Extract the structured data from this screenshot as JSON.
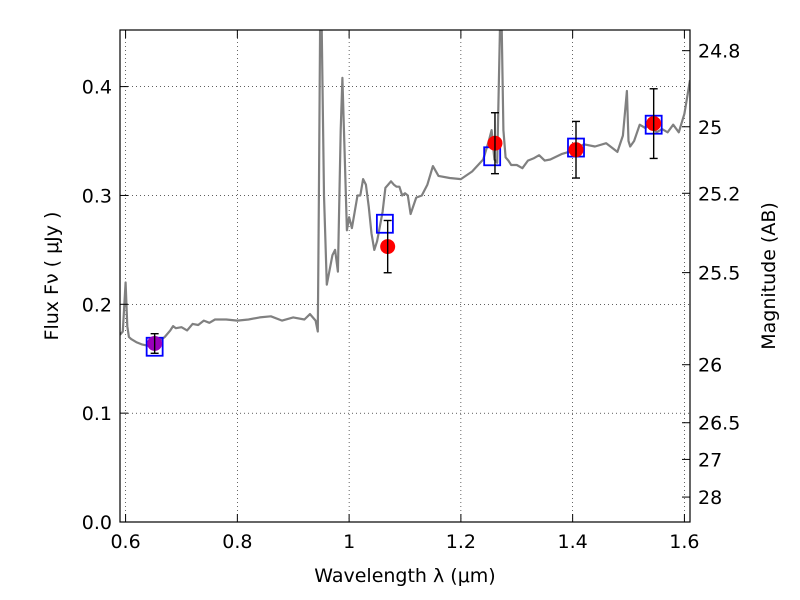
{
  "chart_data": {
    "type": "scatter",
    "xlabel": "Wavelength  λ (μm)",
    "ylabel": "Flux  Fν  ( μJy )",
    "ylabel_right": "Magnitude (AB)",
    "xlim": [
      0.59,
      1.61
    ],
    "ylim": [
      0.0,
      0.452
    ],
    "x_ticks": [
      0.6,
      0.8,
      1.0,
      1.2,
      1.4,
      1.6
    ],
    "x_tick_labels": [
      "0.6",
      "0.8",
      "1",
      "1.2",
      "1.4",
      "1.6"
    ],
    "y_ticks": [
      0.0,
      0.1,
      0.2,
      0.3,
      0.4
    ],
    "y_tick_labels": [
      "0.0",
      "0.1",
      "0.2",
      "0.3",
      "0.4"
    ],
    "right_axis": {
      "tick_labels": [
        "24.8",
        "25",
        "25.2",
        "25.5",
        "26",
        "26.5",
        "27",
        "28"
      ],
      "tick_flux": [
        0.433,
        0.3631,
        0.302,
        0.2291,
        0.1445,
        0.0912,
        0.0575,
        0.0229
      ]
    },
    "grid": true,
    "grid_style": "dotted",
    "legend": "none",
    "colors": {
      "spectrum": "#808080",
      "observed_points": "#ff0000",
      "model_boxes": "#0000ff",
      "overlap_point": "#9900bb",
      "error_bars": "#000000"
    },
    "spectrum": {
      "x": [
        0.59,
        0.595,
        0.6,
        0.603,
        0.606,
        0.61,
        0.62,
        0.63,
        0.64,
        0.65,
        0.66,
        0.67,
        0.68,
        0.685,
        0.69,
        0.7,
        0.71,
        0.72,
        0.73,
        0.74,
        0.75,
        0.76,
        0.78,
        0.8,
        0.82,
        0.84,
        0.86,
        0.88,
        0.9,
        0.92,
        0.93,
        0.94,
        0.944,
        0.946,
        0.948,
        0.951,
        0.955,
        0.96,
        0.97,
        0.975,
        0.98,
        0.985,
        0.988,
        0.992,
        0.996,
        1.0,
        1.005,
        1.01,
        1.015,
        1.02,
        1.025,
        1.03,
        1.035,
        1.04,
        1.045,
        1.05,
        1.06,
        1.065,
        1.07,
        1.075,
        1.08,
        1.085,
        1.09,
        1.095,
        1.1,
        1.105,
        1.11,
        1.12,
        1.13,
        1.14,
        1.15,
        1.16,
        1.18,
        1.2,
        1.22,
        1.24,
        1.25,
        1.255,
        1.26,
        1.265,
        1.27,
        1.273,
        1.276,
        1.28,
        1.285,
        1.29,
        1.3,
        1.31,
        1.32,
        1.33,
        1.34,
        1.35,
        1.36,
        1.38,
        1.4,
        1.42,
        1.44,
        1.46,
        1.48,
        1.49,
        1.497,
        1.5,
        1.503,
        1.51,
        1.52,
        1.53,
        1.54,
        1.55,
        1.56,
        1.57,
        1.58,
        1.59,
        1.6,
        1.61
      ],
      "y": [
        0.172,
        0.175,
        0.22,
        0.18,
        0.17,
        0.168,
        0.165,
        0.163,
        0.162,
        0.163,
        0.166,
        0.17,
        0.176,
        0.18,
        0.178,
        0.179,
        0.176,
        0.182,
        0.181,
        0.185,
        0.183,
        0.186,
        0.186,
        0.185,
        0.186,
        0.188,
        0.189,
        0.185,
        0.188,
        0.186,
        0.191,
        0.185,
        0.175,
        0.3,
        0.455,
        0.455,
        0.3,
        0.218,
        0.245,
        0.25,
        0.23,
        0.36,
        0.408,
        0.34,
        0.268,
        0.28,
        0.27,
        0.285,
        0.3,
        0.3,
        0.315,
        0.31,
        0.29,
        0.265,
        0.25,
        0.258,
        0.285,
        0.307,
        0.31,
        0.313,
        0.31,
        0.308,
        0.308,
        0.3,
        0.302,
        0.3,
        0.283,
        0.298,
        0.3,
        0.31,
        0.327,
        0.318,
        0.316,
        0.315,
        0.322,
        0.333,
        0.35,
        0.36,
        0.333,
        0.33,
        0.455,
        0.455,
        0.36,
        0.335,
        0.332,
        0.328,
        0.328,
        0.325,
        0.332,
        0.334,
        0.337,
        0.332,
        0.333,
        0.338,
        0.341,
        0.347,
        0.345,
        0.348,
        0.34,
        0.355,
        0.396,
        0.35,
        0.345,
        0.35,
        0.365,
        0.362,
        0.366,
        0.358,
        0.361,
        0.358,
        0.365,
        0.358,
        0.375,
        0.406
      ]
    },
    "observed": [
      {
        "x": 0.652,
        "y": 0.164,
        "yerr": 0.009
      },
      {
        "x": 1.069,
        "y": 0.253,
        "yerr": 0.024
      },
      {
        "x": 1.261,
        "y": 0.348,
        "yerr": 0.028
      },
      {
        "x": 1.406,
        "y": 0.342,
        "yerr": 0.026
      },
      {
        "x": 1.545,
        "y": 0.366,
        "yerr": 0.032
      }
    ],
    "model": [
      {
        "x": 0.652,
        "y": 0.161
      },
      {
        "x": 1.064,
        "y": 0.274
      },
      {
        "x": 1.256,
        "y": 0.336
      },
      {
        "x": 1.406,
        "y": 0.344
      },
      {
        "x": 1.545,
        "y": 0.365
      }
    ]
  }
}
